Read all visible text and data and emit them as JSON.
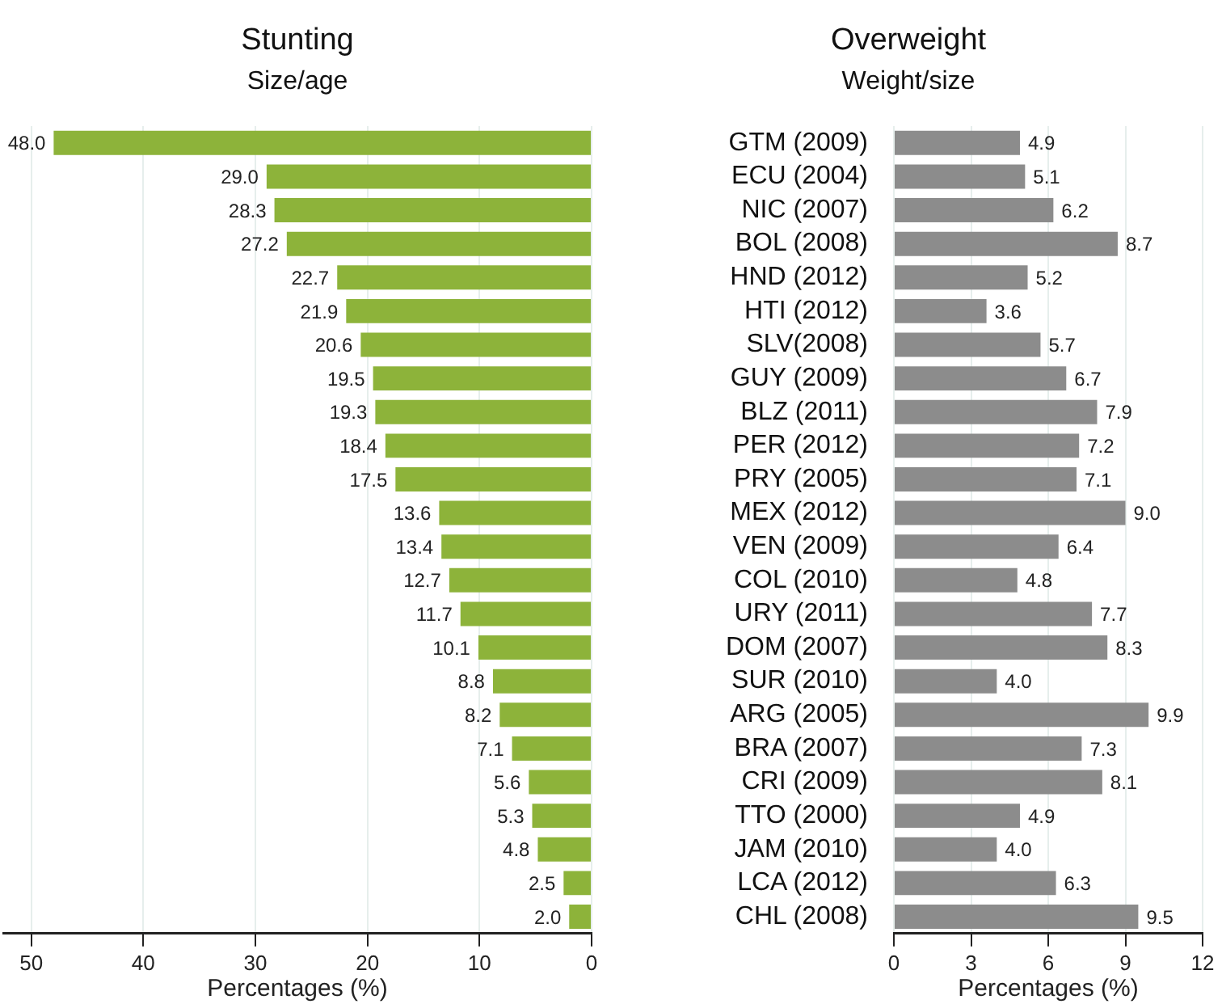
{
  "chart_data": [
    {
      "type": "bar",
      "orientation": "horizontal",
      "title": "Stunting",
      "subtitle": "Size/age",
      "xlabel": "Percentages (%)",
      "categories": [
        null,
        null,
        null,
        null,
        null,
        null,
        null,
        null,
        null,
        null,
        null,
        null,
        null,
        null,
        null,
        null,
        null,
        null,
        null,
        null,
        null,
        null,
        null,
        null
      ],
      "values": [
        48.0,
        29.0,
        28.3,
        27.2,
        22.7,
        21.9,
        20.6,
        19.5,
        19.3,
        18.4,
        17.5,
        13.6,
        13.4,
        12.7,
        11.7,
        10.1,
        8.8,
        8.2,
        7.1,
        5.6,
        5.3,
        4.8,
        2.5,
        2.0
      ],
      "value_labels": [
        "48.0",
        "29.0",
        "28.3",
        "27.2",
        "22.7",
        "21.9",
        "20.6",
        "19.5",
        "19.3",
        "18.4",
        "17.5",
        "13.6",
        "13.4",
        "12.7",
        "11.7",
        "10.1",
        "8.8",
        "8.2",
        "7.1",
        "5.6",
        "5.3",
        "4.8",
        "2.5",
        "2.0"
      ],
      "color": "#8db33a",
      "xlim": [
        52.5,
        0
      ],
      "xticks": [
        50,
        40,
        30,
        20,
        10,
        0
      ],
      "grid": "x"
    },
    {
      "type": "bar",
      "orientation": "horizontal",
      "title": "Overweight",
      "subtitle": "Weight/size",
      "xlabel": "Percentages (%)",
      "categories": [
        "GTM (2009)",
        "ECU (2004)",
        "NIC (2007)",
        "BOL (2008)",
        "HND (2012)",
        "HTI (2012)",
        "SLV(2008)",
        "GUY (2009)",
        "BLZ (2011)",
        "PER (2012)",
        "PRY (2005)",
        "MEX (2012)",
        "VEN (2009)",
        "COL (2010)",
        "URY (2011)",
        "DOM (2007)",
        "SUR (2010)",
        "ARG (2005)",
        "BRA (2007)",
        "CRI (2009)",
        "TTO (2000)",
        "JAM (2010)",
        "LCA (2012)",
        "CHL (2008)"
      ],
      "values": [
        4.9,
        5.1,
        6.2,
        8.7,
        5.2,
        3.6,
        5.7,
        6.7,
        7.9,
        7.2,
        7.1,
        9.0,
        6.4,
        4.8,
        7.7,
        8.3,
        4.0,
        9.9,
        7.3,
        8.1,
        4.9,
        4.0,
        6.3,
        9.5
      ],
      "value_labels": [
        "4.9",
        "5.1",
        "6.2",
        "8.7",
        "5.2",
        "3.6",
        "5.7",
        "6.7",
        "7.9",
        "7.2",
        "7.1",
        "9.0",
        "6.4",
        "4.8",
        "7.7",
        "8.3",
        "4.0",
        "9.9",
        "7.3",
        "8.1",
        "4.9",
        "4.0",
        "6.3",
        "9.5"
      ],
      "color": "#8c8c8c",
      "xlim": [
        0,
        12
      ],
      "xticks": [
        0,
        3,
        6,
        9,
        12
      ],
      "grid": "x"
    }
  ]
}
